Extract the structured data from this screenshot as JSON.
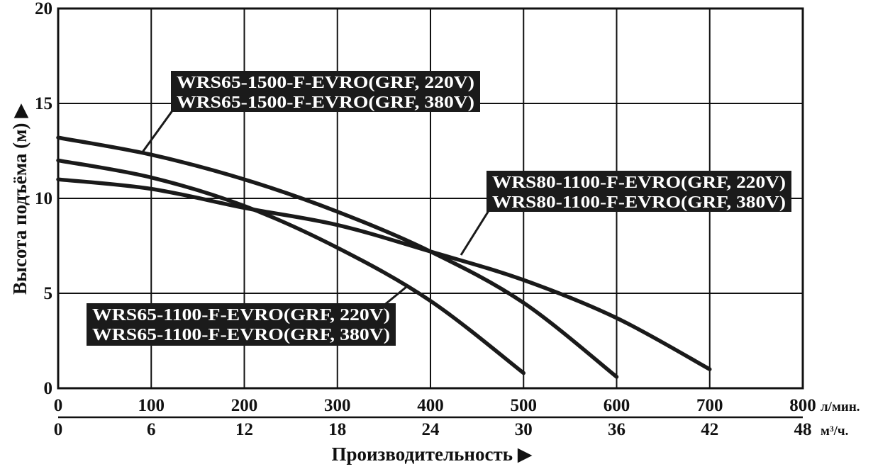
{
  "chart_data": {
    "type": "line",
    "title": "",
    "ylabel": "Высота подъёма (м) ▶",
    "xlabel": "Производительность ▶",
    "ylim": [
      0,
      20
    ],
    "yticks": [
      "0",
      "5",
      "10",
      "15",
      "20"
    ],
    "x_axes": [
      {
        "unit": "л/мин.",
        "ticks": [
          "0",
          "100",
          "200",
          "300",
          "400",
          "500",
          "600",
          "700",
          "800"
        ],
        "range": [
          0,
          800
        ]
      },
      {
        "unit": "м³/ч.",
        "ticks": [
          "0",
          "6",
          "12",
          "18",
          "24",
          "30",
          "36",
          "42",
          "48"
        ],
        "range": [
          0,
          48
        ]
      }
    ],
    "grid": true,
    "series": [
      {
        "id": "wrs65_1100",
        "labels": [
          "WRS65-1100-F-EVRO(GRF, 220V)",
          "WRS65-1100-F-EVRO(GRF, 380V)"
        ],
        "x": [
          0,
          100,
          200,
          300,
          400,
          500
        ],
        "y": [
          12.0,
          11.1,
          9.6,
          7.4,
          4.6,
          0.8
        ]
      },
      {
        "id": "wrs65_1500",
        "labels": [
          "WRS65-1500-F-EVRO(GRF, 220V)",
          "WRS65-1500-F-EVRO(GRF, 380V)"
        ],
        "x": [
          0,
          100,
          200,
          300,
          400,
          500,
          600
        ],
        "y": [
          13.2,
          12.3,
          11.0,
          9.3,
          7.2,
          4.5,
          0.6
        ]
      },
      {
        "id": "wrs80_1100",
        "labels": [
          "WRS80-1100-F-EVRO(GRF, 220V)",
          "WRS80-1100-F-EVRO(GRF, 380V)"
        ],
        "x": [
          0,
          100,
          200,
          300,
          400,
          500,
          600,
          700
        ],
        "y": [
          11.0,
          10.5,
          9.5,
          8.6,
          7.2,
          5.7,
          3.7,
          1.0
        ]
      }
    ]
  }
}
